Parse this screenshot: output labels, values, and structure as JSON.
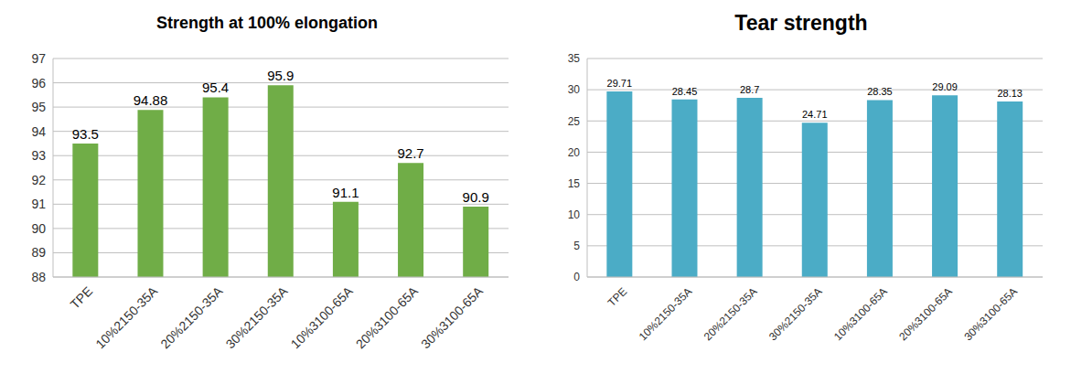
{
  "chart_data": [
    {
      "type": "bar",
      "title": "Strength at 100% elongation",
      "categories": [
        "TPE",
        "10%2150-35A",
        "20%2150-35A",
        "30%2150-35A",
        "10%3100-65A",
        "20%3100-65A",
        "30%3100-65A"
      ],
      "values": [
        93.5,
        94.88,
        95.4,
        95.9,
        91.1,
        92.7,
        90.9
      ],
      "color": "#70ad47",
      "ylim": [
        88,
        97
      ],
      "yticks": [
        88,
        89,
        90,
        91,
        92,
        93,
        94,
        95,
        96,
        97
      ],
      "grid": true,
      "data_labels": true
    },
    {
      "type": "bar",
      "title": "Tear strength",
      "categories": [
        "TPE",
        "10%2150-35A",
        "20%2150-35A",
        "30%2150-35A",
        "10%3100-65A",
        "20%3100-65A",
        "30%3100-65A"
      ],
      "values": [
        29.71,
        28.45,
        28.7,
        24.71,
        28.35,
        29.09,
        28.13
      ],
      "color": "#4bacc6",
      "ylim": [
        0,
        35
      ],
      "yticks": [
        0,
        5,
        10,
        15,
        20,
        25,
        30,
        35
      ],
      "grid": true,
      "data_labels": true
    }
  ]
}
